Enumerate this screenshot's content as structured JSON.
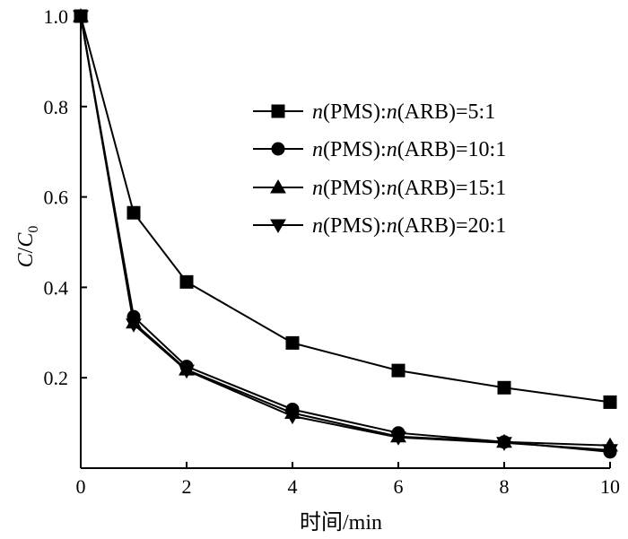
{
  "chart_data": {
    "type": "line",
    "xlabel": "时间/min",
    "ylabel_main": "C",
    "ylabel_slash": "/",
    "ylabel_c": "C",
    "ylabel_sub": "0",
    "xlim": [
      0,
      10
    ],
    "ylim": [
      0,
      1.0
    ],
    "xticks": [
      0,
      2,
      4,
      6,
      8,
      10
    ],
    "yticks": [
      0.2,
      0.4,
      0.6,
      0.8,
      1.0
    ],
    "ytick_labels": [
      "0.2",
      "0.4",
      "0.6",
      "0.8",
      "1.0"
    ],
    "legend_position": "upper-right",
    "grid": false,
    "series": [
      {
        "name": "n(PMS):n(ARB)=5:1",
        "label_parts": [
          "n",
          "(PMS):",
          "n",
          "(ARB)=5:1"
        ],
        "marker": "square",
        "x": [
          0,
          1,
          2,
          4,
          6,
          8,
          10
        ],
        "values": [
          1.0,
          0.565,
          0.412,
          0.277,
          0.216,
          0.178,
          0.146
        ]
      },
      {
        "name": "n(PMS):n(ARB)=10:1",
        "label_parts": [
          "n",
          "(PMS):",
          "n",
          "(ARB)=10:1"
        ],
        "marker": "circle",
        "x": [
          0,
          1,
          2,
          4,
          6,
          8,
          10
        ],
        "values": [
          1.0,
          0.335,
          0.225,
          0.13,
          0.078,
          0.058,
          0.036
        ]
      },
      {
        "name": "n(PMS):n(ARB)=15:1",
        "label_parts": [
          "n",
          "(PMS):",
          "n",
          "(ARB)=15:1"
        ],
        "marker": "triangle-up",
        "x": [
          0,
          1,
          2,
          4,
          6,
          8,
          10
        ],
        "values": [
          1.0,
          0.322,
          0.218,
          0.122,
          0.07,
          0.058,
          0.05
        ]
      },
      {
        "name": "n(PMS):n(ARB)=20:1",
        "label_parts": [
          "n",
          "(PMS):",
          "n",
          "(ARB)=20:1"
        ],
        "marker": "triangle-down",
        "x": [
          0,
          1,
          2,
          4,
          6,
          8,
          10
        ],
        "values": [
          1.0,
          0.318,
          0.216,
          0.115,
          0.068,
          0.056,
          0.04
        ]
      }
    ]
  }
}
